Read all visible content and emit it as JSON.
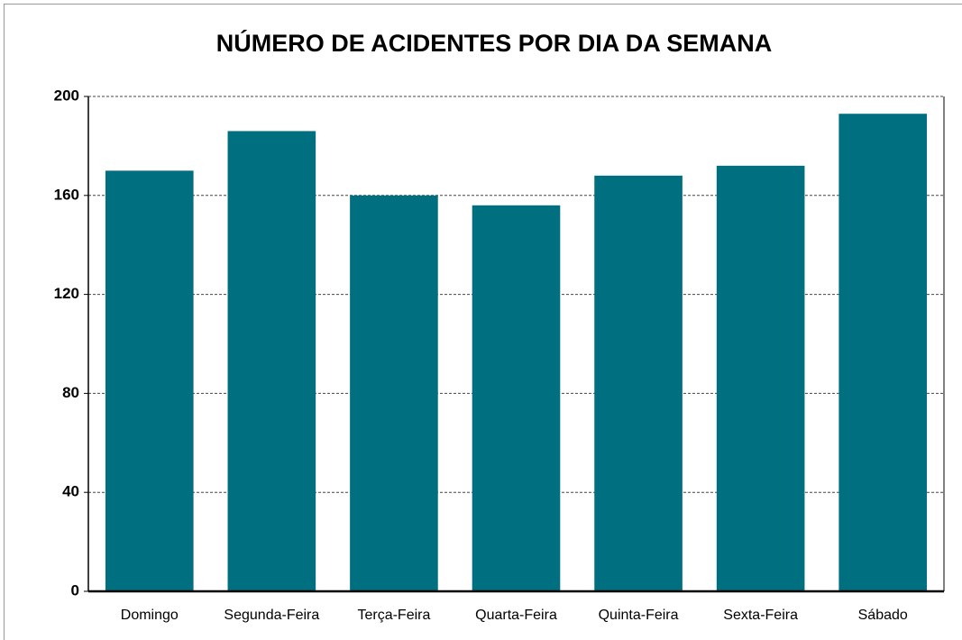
{
  "chart_data": {
    "type": "bar",
    "title": "NÚMERO DE ACIDENTES POR DIA DA SEMANA",
    "categories": [
      "Domingo",
      "Segunda-Feira",
      "Terça-Feira",
      "Quarta-Feira",
      "Quinta-Feira",
      "Sexta-Feira",
      "Sábado"
    ],
    "values": [
      170,
      186,
      160,
      156,
      168,
      172,
      193
    ],
    "color": "#006f80",
    "ylim": [
      0,
      200
    ],
    "yticks": [
      0,
      40,
      80,
      120,
      160,
      200
    ],
    "grid": true
  }
}
